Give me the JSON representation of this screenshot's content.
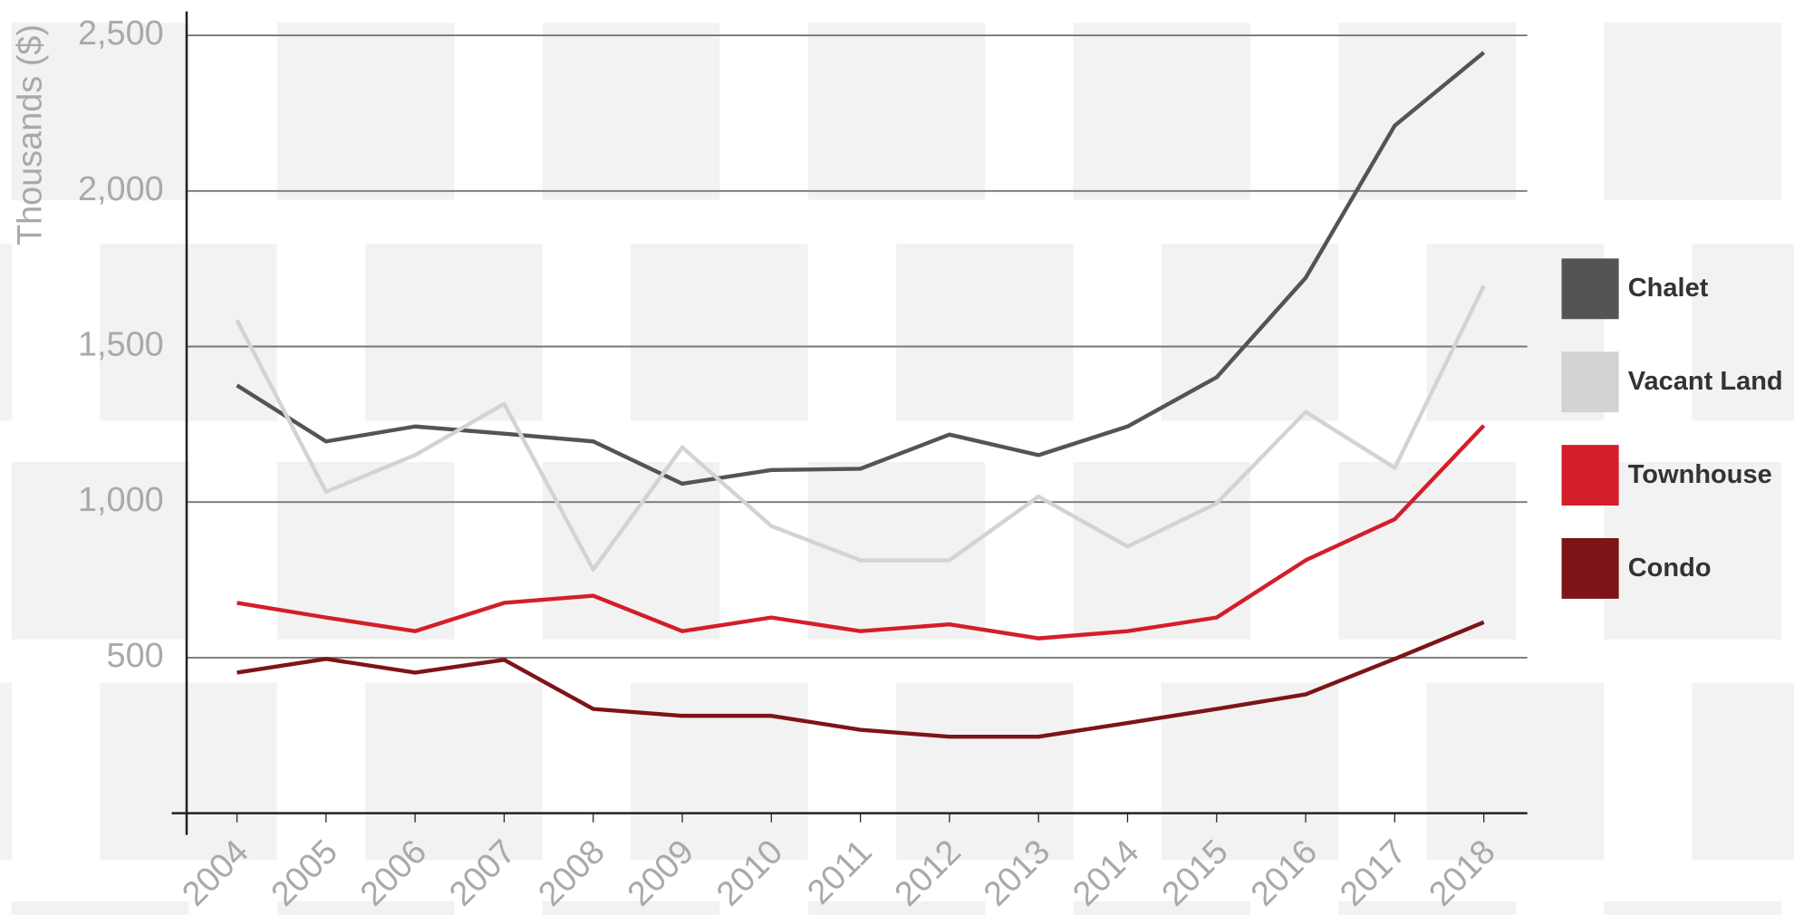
{
  "chart_data": {
    "type": "line",
    "y_label": "Thousands ($)",
    "categories": [
      "2004",
      "2005",
      "2006",
      "2007",
      "2008",
      "2009",
      "2010",
      "2011",
      "2012",
      "2013",
      "2014",
      "2015",
      "2016",
      "2017",
      "2018"
    ],
    "series": [
      {
        "name": "Chalet",
        "color": "#545454",
        "values": [
          1375,
          1195,
          1243,
          1220,
          1195,
          1059,
          1103,
          1107,
          1217,
          1151,
          1243,
          1401,
          1721,
          2210,
          2445
        ]
      },
      {
        "name": "Vacant Land",
        "color": "#d3d3d3",
        "values": [
          1585,
          1033,
          1151,
          1316,
          783,
          1176,
          923,
          813,
          813,
          1018,
          857,
          996,
          1290,
          1110,
          1695
        ]
      },
      {
        "name": "Townhouse",
        "color": "#d41e2a",
        "values": [
          676,
          629,
          585,
          676,
          699,
          585,
          629,
          585,
          607,
          562,
          585,
          629,
          813,
          945,
          1246
        ]
      },
      {
        "name": "Condo",
        "color": "#7d1418",
        "values": [
          452,
          496,
          452,
          493,
          335,
          313,
          313,
          268,
          246,
          246,
          290,
          335,
          382,
          496,
          614
        ]
      }
    ],
    "ylim": [
      0,
      2577
    ],
    "yticks": [
      500,
      {
        "value": 1000,
        "label": "1,000"
      },
      {
        "value": 1500,
        "label": "1,500"
      },
      {
        "value": 2000,
        "label": "2,000"
      },
      {
        "value": 2500,
        "label": "2,500"
      }
    ],
    "grid": true
  }
}
